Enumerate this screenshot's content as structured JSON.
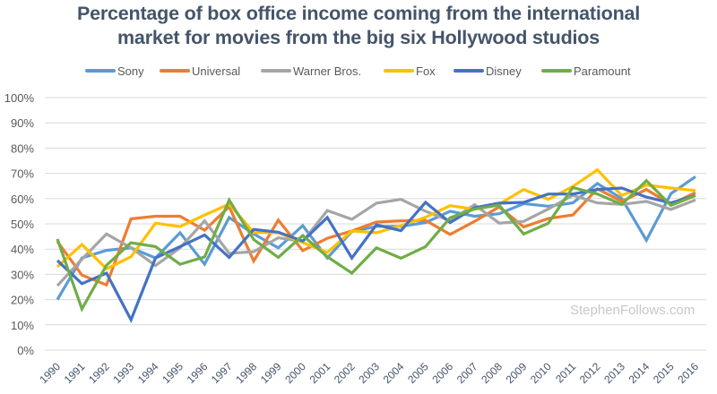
{
  "chart_data": {
    "type": "line",
    "title": "Percentage of box office income coming from the international market for movies from the big six Hollywood studios",
    "title_lines": [
      "Percentage of box office income coming from the international",
      "market for movies from the big six Hollywood studios"
    ],
    "xlabel": "",
    "ylabel": "",
    "ylim": [
      0,
      100
    ],
    "yticks": [
      "0%",
      "10%",
      "20%",
      "30%",
      "40%",
      "50%",
      "60%",
      "70%",
      "80%",
      "90%",
      "100%"
    ],
    "grid": true,
    "legend_position": "top",
    "x": [
      "1990",
      "1991",
      "1992",
      "1993",
      "1994",
      "1995",
      "1996",
      "1997",
      "1998",
      "1999",
      "2000",
      "2001",
      "2002",
      "2003",
      "2004",
      "2005",
      "2006",
      "2007",
      "2008",
      "2009",
      "2010",
      "2011",
      "2012",
      "2013",
      "2014",
      "2015",
      "2016"
    ],
    "series": [
      {
        "name": "Sony",
        "color": "#5b9bd5",
        "values": [
          20,
          36.5,
          39.5,
          40.5,
          36.5,
          46.5,
          34,
          52.5,
          46,
          40.5,
          49.3,
          36.5,
          47,
          49,
          49,
          50.5,
          55,
          53,
          54,
          58,
          57,
          58.3,
          66,
          60,
          43.5,
          62,
          68.7
        ]
      },
      {
        "name": "Universal",
        "color": "#ed7d31",
        "values": [
          43,
          29.7,
          25.8,
          52,
          53,
          53,
          47.5,
          56.8,
          35.3,
          51.5,
          39.4,
          44.3,
          47.2,
          50.7,
          51.2,
          51.4,
          45.8,
          51,
          56.7,
          48.8,
          52.1,
          53.5,
          63.9,
          58.9,
          63.6,
          57.7,
          62.4
        ]
      },
      {
        "name": "Warner Bros.",
        "color": "#a5a5a5",
        "values": [
          25.5,
          36,
          46,
          40.5,
          33.5,
          40.5,
          51.2,
          38.3,
          39,
          44.5,
          43,
          55.3,
          51.8,
          58.2,
          59.7,
          55,
          51.2,
          57.6,
          50.3,
          51,
          55.9,
          61.3,
          58.3,
          57.7,
          58.9,
          55.7,
          59.5
        ]
      },
      {
        "name": "Fox",
        "color": "#ffc000",
        "values": [
          33,
          41.8,
          32.2,
          37,
          50.3,
          48.9,
          53.5,
          57.8,
          46.6,
          46.5,
          42.6,
          38.7,
          47.2,
          46.5,
          49.3,
          52.6,
          57.2,
          55.8,
          57.8,
          63.6,
          59.7,
          64.8,
          71.4,
          61.2,
          65.4,
          64.2,
          63.2
        ]
      },
      {
        "name": "Disney",
        "color": "#4472c4",
        "values": [
          35.5,
          26.3,
          30.5,
          12,
          36.5,
          41,
          45.6,
          36.7,
          47.8,
          46.7,
          43.2,
          52.5,
          36.5,
          49.6,
          47.3,
          58.5,
          50.5,
          56.4,
          58.2,
          58.5,
          61.8,
          61.8,
          63.6,
          64.2,
          60.6,
          58.3,
          61.2
        ]
      },
      {
        "name": "Paramount",
        "color": "#70ad47",
        "values": [
          44,
          16.3,
          33.6,
          42.5,
          41,
          34,
          36.9,
          59.4,
          43.8,
          36.7,
          45.4,
          37,
          30.5,
          40.5,
          36.4,
          41,
          52.4,
          55.9,
          57.4,
          46,
          50.2,
          64.4,
          61.8,
          57.7,
          67.1,
          57.3,
          61.2
        ]
      }
    ]
  },
  "watermark": "StephenFollows.com"
}
